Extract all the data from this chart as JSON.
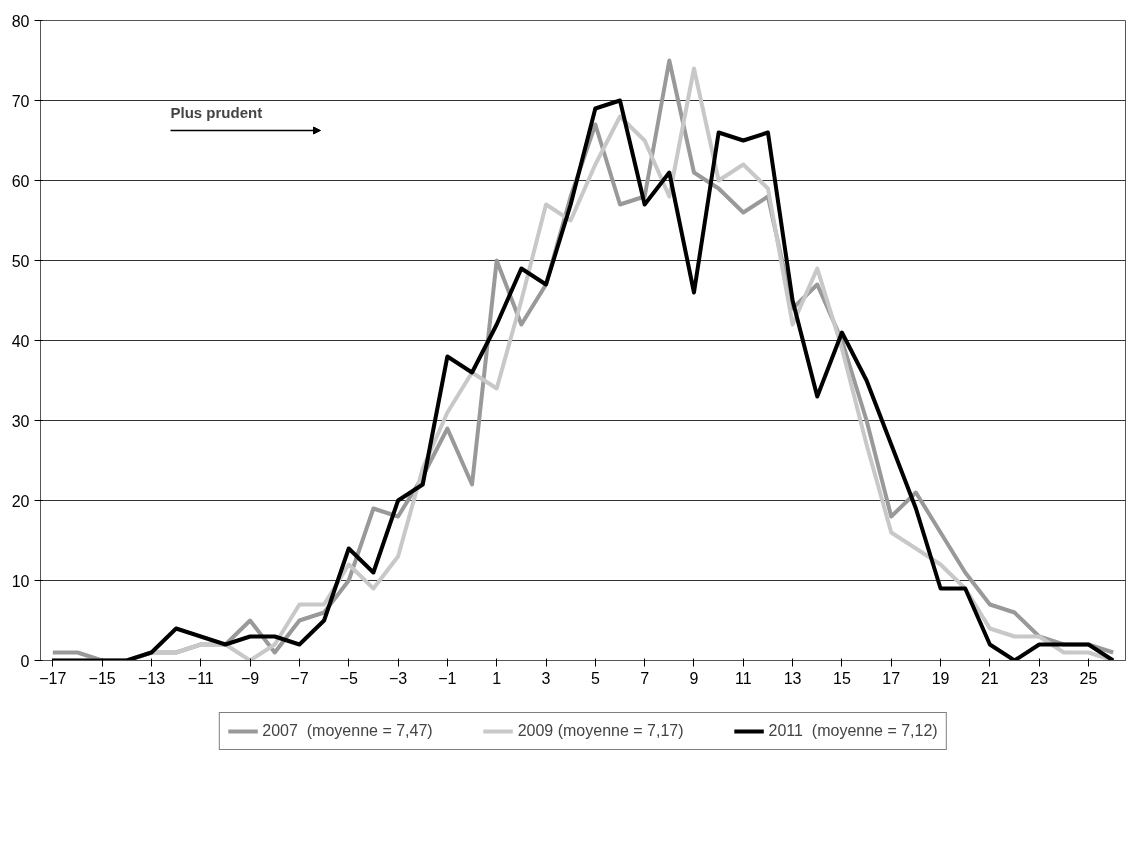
{
  "chart_data": {
    "type": "line",
    "x": [
      -17,
      -16,
      -15,
      -14,
      -13,
      -12,
      -11,
      -10,
      -9,
      -8,
      -7,
      -6,
      -5,
      -4,
      -3,
      -2,
      -1,
      0,
      1,
      2,
      3,
      4,
      5,
      6,
      7,
      8,
      9,
      10,
      11,
      12,
      13,
      14,
      15,
      16,
      17,
      18,
      19,
      20,
      21,
      22,
      23,
      24,
      25,
      26
    ],
    "series": [
      {
        "name": "2007  (moyenne = 7,47)",
        "color": "#999999",
        "values": [
          1,
          1,
          0,
          0,
          1,
          1,
          2,
          2,
          5,
          1,
          5,
          6,
          10,
          19,
          18,
          23,
          29,
          22,
          50,
          42,
          47,
          58,
          67,
          57,
          58,
          75,
          61,
          59,
          56,
          58,
          44,
          47,
          40,
          30,
          18,
          21,
          16,
          11,
          7,
          6,
          3,
          2,
          2,
          1
        ]
      },
      {
        "name": "2009 (moyenne = 7,17)",
        "color": "#c8c8c8",
        "values": [
          0,
          0,
          0,
          0,
          1,
          1,
          2,
          2,
          0,
          2,
          7,
          7,
          12,
          9,
          13,
          24,
          31,
          36,
          34,
          45,
          57,
          55,
          62,
          68,
          65,
          58,
          74,
          60,
          62,
          59,
          42,
          49,
          39,
          27,
          16,
          14,
          12,
          9,
          4,
          3,
          3,
          1,
          1,
          0
        ]
      },
      {
        "name": "2011  (moyenne = 7,12)",
        "color": "#000000",
        "values": [
          0,
          0,
          0,
          0,
          1,
          4,
          3,
          2,
          3,
          3,
          2,
          5,
          14,
          11,
          20,
          22,
          38,
          36,
          42,
          49,
          47,
          57,
          69,
          70,
          57,
          61,
          46,
          66,
          65,
          66,
          45,
          33,
          41,
          35,
          27,
          19,
          9,
          9,
          2,
          0,
          2,
          2,
          2,
          0
        ]
      }
    ],
    "xlim": [
      -17.5,
      26.5
    ],
    "xticks": [
      -17,
      -15,
      -13,
      -11,
      -9,
      -7,
      -5,
      -3,
      -1,
      1,
      3,
      5,
      7,
      9,
      11,
      13,
      15,
      17,
      19,
      21,
      23,
      25
    ],
    "ylim": [
      0,
      80
    ],
    "yticks": [
      0,
      10,
      20,
      30,
      40,
      50,
      60,
      70,
      80
    ],
    "grid": "y",
    "legend": "bottom",
    "marker": "none",
    "line_style": "solid",
    "annotations": [
      "Plus prudent"
    ]
  }
}
